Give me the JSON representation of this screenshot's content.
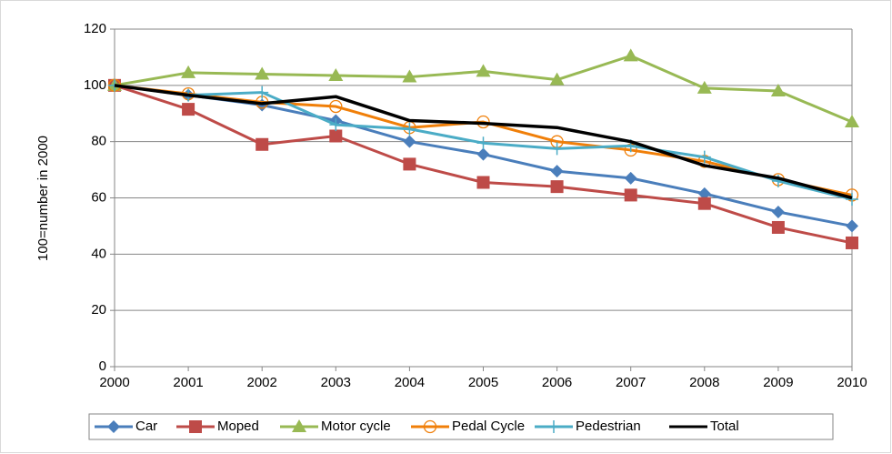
{
  "chart_data": {
    "type": "line",
    "y_label": "100=number in 2000",
    "categories": [
      "2000",
      "2001",
      "2002",
      "2003",
      "2004",
      "2005",
      "2006",
      "2007",
      "2008",
      "2009",
      "2010"
    ],
    "ylim": [
      0,
      120
    ],
    "yticks": [
      0,
      20,
      40,
      60,
      80,
      100,
      120
    ],
    "grid": true,
    "legend": "bottom",
    "series": [
      {
        "name": "Car",
        "color": "#4a7ebb",
        "marker": "diamond",
        "values": [
          100,
          96.5,
          93,
          87.5,
          80,
          75.5,
          69.5,
          67,
          61.5,
          55,
          50
        ]
      },
      {
        "name": "Moped",
        "color": "#be4b48",
        "marker": "square",
        "values": [
          100,
          91.5,
          79,
          82,
          72,
          65.5,
          64,
          61,
          58,
          49.5,
          44
        ]
      },
      {
        "name": "Motor cycle",
        "color": "#98b954",
        "marker": "triangle",
        "values": [
          100,
          104.5,
          104,
          103.5,
          103,
          105,
          102,
          110.5,
          99,
          98,
          87
        ]
      },
      {
        "name": "Pedal Cycle",
        "color": "#f07f09",
        "marker": "circle",
        "values": [
          100,
          97,
          94,
          92.5,
          85,
          87,
          80,
          77,
          73,
          66.5,
          61
        ]
      },
      {
        "name": "Pedestrian",
        "color": "#4bacc6",
        "marker": "plus",
        "values": [
          100,
          96.5,
          97.5,
          86,
          84.5,
          79.5,
          77.5,
          78.5,
          74.5,
          66,
          59.5
        ]
      },
      {
        "name": "Total",
        "color": "#000000",
        "marker": "none",
        "values": [
          100,
          96.5,
          93.5,
          96,
          87.5,
          86.5,
          85,
          80,
          71.5,
          67,
          60
        ]
      }
    ]
  }
}
